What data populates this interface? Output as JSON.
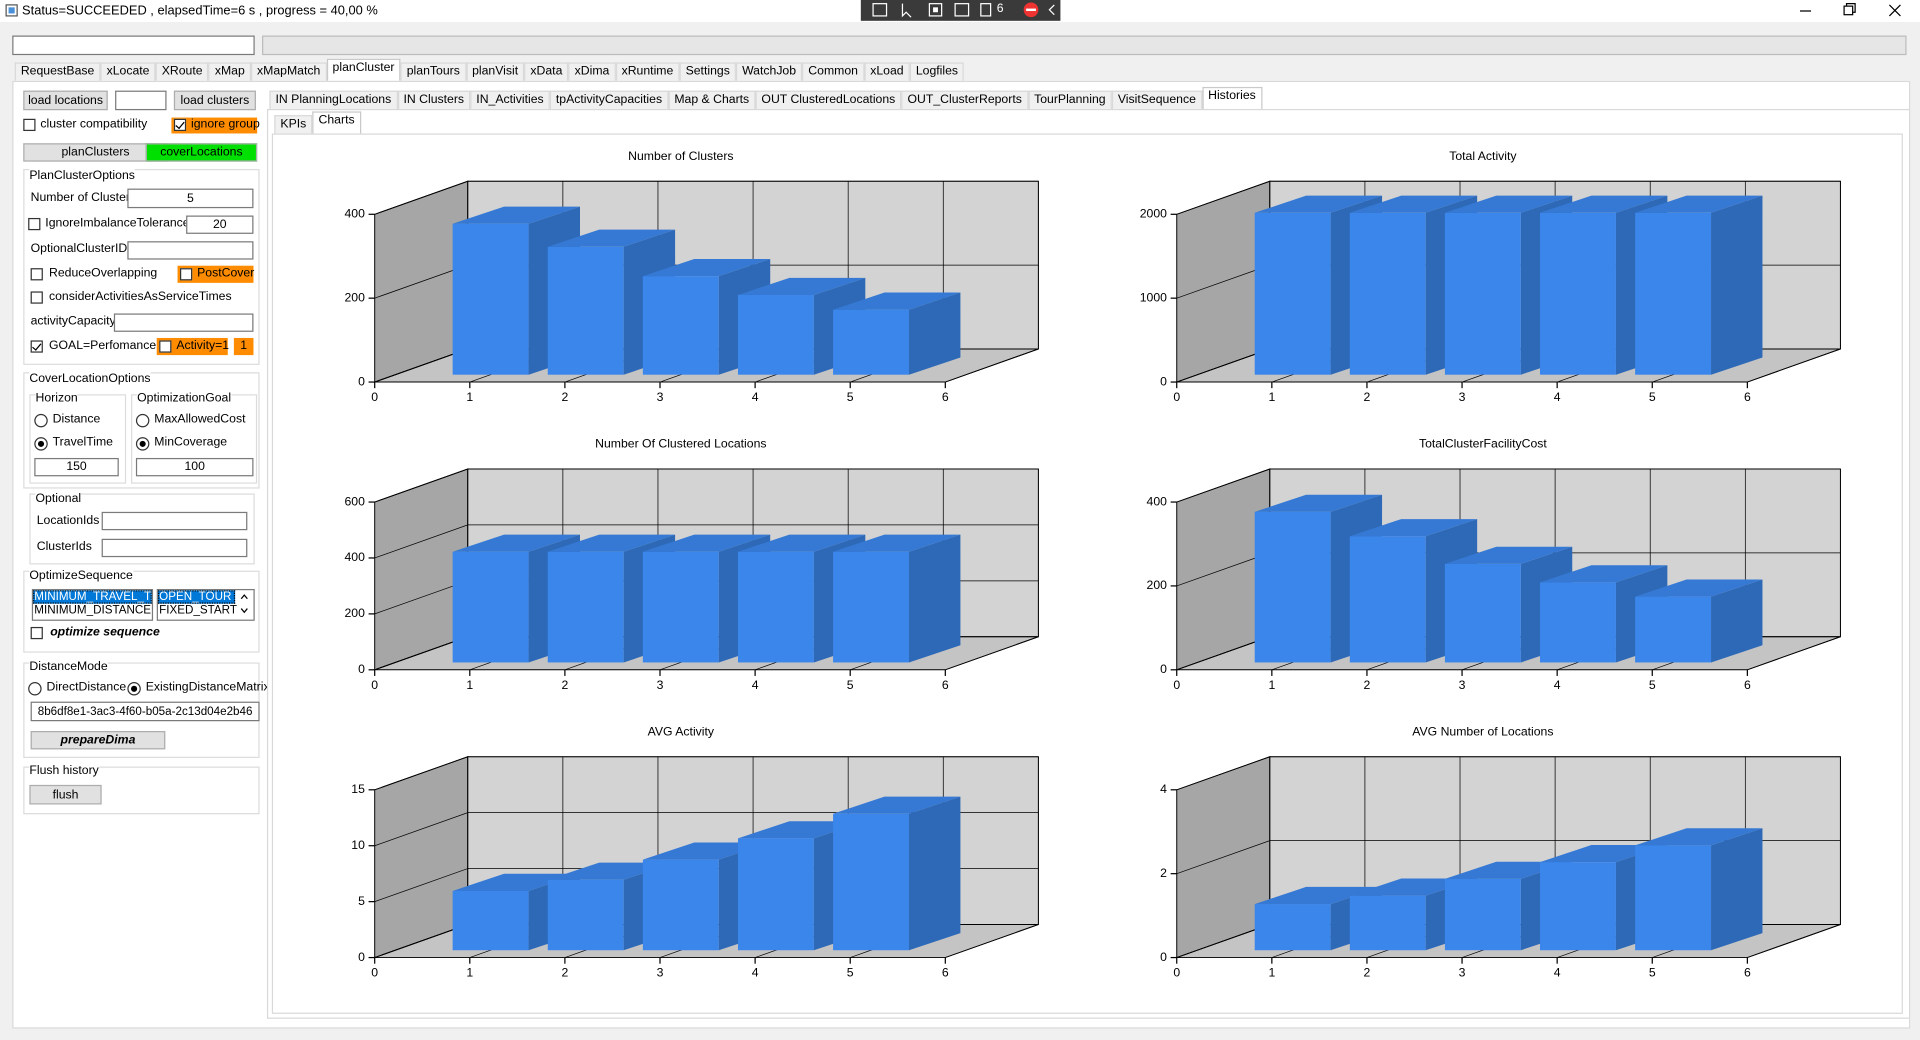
{
  "window": {
    "title": "Status=SUCCEEDED , elapsedTime=6 s , progress = 40,00 %",
    "toolbar_badge": "6"
  },
  "main_tabs": [
    "RequestBase",
    "xLocate",
    "XRoute",
    "xMap",
    "xMapMatch",
    "planCluster",
    "planTours",
    "planVisit",
    "xData",
    "xDima",
    "xRuntime",
    "Settings",
    "WatchJob",
    "Common",
    "xLoad",
    "Logfiles"
  ],
  "left_panel": {
    "load_locations": "load locations",
    "load_clusters": "load clusters",
    "cluster_compatibility": "cluster compatibility",
    "ignore_group": "ignore group",
    "plan_clusters": "planClusters",
    "cover_locations": "coverLocations",
    "plan_cluster_options": {
      "title": "PlanClusterOptions",
      "number_of_clusters_label": "Number of Clusters",
      "number_of_clusters": "5",
      "ignore_imbalance_tolerance_label": "IgnoreImbalanceTolerance",
      "ignore_imbalance_tolerance": "20",
      "optional_cluster_ids_label": "OptionalClusterIDs",
      "reduce_overlapping": "ReduceOverlapping",
      "post_cover": "PostCover",
      "consider_activities": "considerActivitiesAsServiceTimes",
      "activity_capacity_label": "activityCapacity",
      "goal": "GOAL=Perfomance",
      "activity": "Activity=1",
      "activity_value": "1"
    },
    "cover_location_options": {
      "title": "CoverLocationOptions",
      "horizon": {
        "title": "Horizon",
        "options": [
          "Distance",
          "TravelTime"
        ],
        "value": "150"
      },
      "optimization_goal": {
        "title": "OptimizationGoal",
        "options": [
          "MaxAllowedCost",
          "MinCoverage"
        ],
        "value": "100"
      }
    },
    "optional": {
      "title": "Optional",
      "location_ids_label": "LocationIds",
      "cluster_ids_label": "ClusterIds"
    },
    "optimize_sequence": {
      "title": "OptimizeSequence",
      "objectives": [
        "MINIMUM_TRAVEL_TI",
        "MINIMUM_DISTANCE"
      ],
      "tour_types": [
        "OPEN_TOUR",
        "FIXED_START"
      ],
      "optimize_label": "optimize sequence"
    },
    "distance_mode": {
      "title": "DistanceMode",
      "options": [
        "DirectDistance",
        "ExistingDistanceMatrix"
      ],
      "matrix_id": "8b6df8e1-3ac3-4f60-b05a-2c13d04e2b46",
      "prepare_button": "prepareDima"
    },
    "flush_history": {
      "title": "Flush history",
      "button": "flush"
    }
  },
  "sub_tabs": [
    "IN PlanningLocations",
    "IN Clusters",
    "IN_Activities",
    "tpActivityCapacities",
    "Map & Charts",
    "OUT ClusteredLocations",
    "OUT_ClusterReports",
    "TourPlanning",
    "VisitSequence",
    "Histories"
  ],
  "view_tabs": [
    "KPIs",
    "Charts"
  ],
  "chart_data": [
    {
      "type": "bar",
      "title": "Number of Clusters",
      "x": [
        1,
        2,
        3,
        4,
        5
      ],
      "values": [
        360,
        305,
        235,
        190,
        155
      ],
      "color": "#3b86eb",
      "xlim": [
        0,
        6
      ],
      "xticks": [
        0,
        1,
        2,
        3,
        4,
        5,
        6
      ],
      "ylim": [
        0,
        400
      ],
      "yticks": [
        0,
        200,
        400
      ],
      "grid": true
    },
    {
      "type": "bar",
      "title": "Total Activity",
      "x": [
        1,
        2,
        3,
        4,
        5
      ],
      "values": [
        1930,
        1930,
        1930,
        1930,
        1930
      ],
      "color": "#3b86eb",
      "xlim": [
        0,
        6
      ],
      "xticks": [
        0,
        1,
        2,
        3,
        4,
        5,
        6
      ],
      "ylim": [
        0,
        2000
      ],
      "yticks": [
        0,
        1000,
        2000
      ],
      "grid": true
    },
    {
      "type": "bar",
      "title": "Number Of Clustered Locations",
      "x": [
        1,
        2,
        3,
        4,
        5
      ],
      "values": [
        396,
        396,
        396,
        396,
        396
      ],
      "color": "#3b86eb",
      "xlim": [
        0,
        6
      ],
      "xticks": [
        0,
        1,
        2,
        3,
        4,
        5,
        6
      ],
      "ylim": [
        0,
        600
      ],
      "yticks": [
        0,
        200,
        400,
        600
      ],
      "grid": true
    },
    {
      "type": "bar",
      "title": "TotalClusterFacilityCost",
      "x": [
        1,
        2,
        3,
        4,
        5
      ],
      "values": [
        359,
        301,
        235,
        191,
        157
      ],
      "color": "#3b86eb",
      "xlim": [
        0,
        6
      ],
      "xticks": [
        0,
        1,
        2,
        3,
        4,
        5,
        6
      ],
      "ylim": [
        0,
        400
      ],
      "yticks": [
        0,
        200,
        400
      ],
      "grid": true
    },
    {
      "type": "bar",
      "title": "AVG Activity",
      "x": [
        1,
        2,
        3,
        4,
        5
      ],
      "values": [
        5.3,
        6.3,
        8.1,
        10.0,
        12.2
      ],
      "color": "#3b86eb",
      "xlim": [
        0,
        6
      ],
      "xticks": [
        0,
        1,
        2,
        3,
        4,
        5,
        6
      ],
      "ylim": [
        0,
        15
      ],
      "yticks": [
        0,
        5,
        10,
        15
      ],
      "grid": true
    },
    {
      "type": "bar",
      "title": "AVG Number of Locations",
      "x": [
        1,
        2,
        3,
        4,
        5
      ],
      "values": [
        1.1,
        1.3,
        1.7,
        2.1,
        2.5
      ],
      "color": "#3b86eb",
      "xlim": [
        0,
        6
      ],
      "xticks": [
        0,
        1,
        2,
        3,
        4,
        5,
        6
      ],
      "ylim": [
        0,
        4
      ],
      "yticks": [
        0,
        2,
        4
      ],
      "grid": true
    }
  ]
}
